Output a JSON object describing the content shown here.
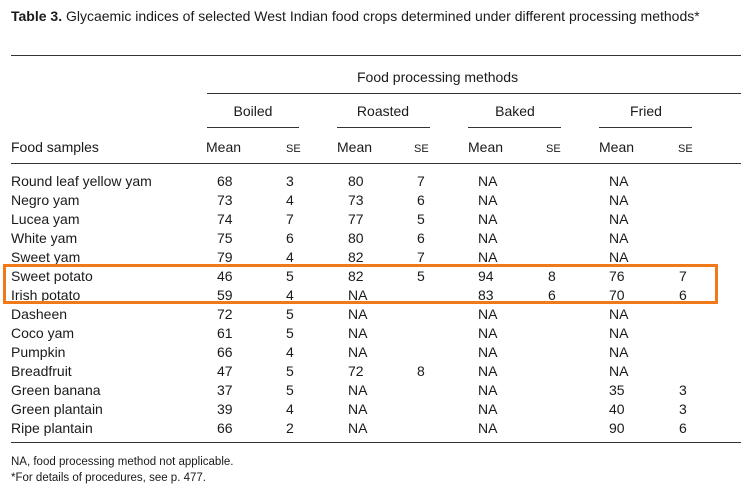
{
  "caption": {
    "label": "Table 3.",
    "text": " Glycaemic indices of selected West Indian food crops determined under different processing methods*"
  },
  "header": {
    "group_title": "Food processing methods",
    "methods": [
      "Boiled",
      "Roasted",
      "Baked",
      "Fried"
    ],
    "food_samples": "Food samples",
    "mean": "Mean",
    "se": "SE"
  },
  "rows": [
    {
      "name": "Round leaf yellow yam",
      "vals": [
        "68",
        "3",
        "80",
        "7",
        "NA",
        "",
        "NA",
        ""
      ]
    },
    {
      "name": "Negro yam",
      "vals": [
        "73",
        "4",
        "73",
        "6",
        "NA",
        "",
        "NA",
        ""
      ]
    },
    {
      "name": "Lucea yam",
      "vals": [
        "74",
        "7",
        "77",
        "5",
        "NA",
        "",
        "NA",
        ""
      ]
    },
    {
      "name": "White yam",
      "vals": [
        "75",
        "6",
        "80",
        "6",
        "NA",
        "",
        "NA",
        ""
      ]
    },
    {
      "name": "Sweet yam",
      "vals": [
        "79",
        "4",
        "82",
        "7",
        "NA",
        "",
        "NA",
        ""
      ]
    },
    {
      "name": "Sweet potato",
      "vals": [
        "46",
        "5",
        "82",
        "5",
        "94",
        "8",
        "76",
        "7"
      ]
    },
    {
      "name": "Irish potato",
      "vals": [
        "59",
        "4",
        "NA",
        "",
        "83",
        "6",
        "70",
        "6"
      ]
    },
    {
      "name": "Dasheen",
      "vals": [
        "72",
        "5",
        "NA",
        "",
        "NA",
        "",
        "NA",
        ""
      ]
    },
    {
      "name": "Coco yam",
      "vals": [
        "61",
        "5",
        "NA",
        "",
        "NA",
        "",
        "NA",
        ""
      ]
    },
    {
      "name": "Pumpkin",
      "vals": [
        "66",
        "4",
        "NA",
        "",
        "NA",
        "",
        "NA",
        ""
      ]
    },
    {
      "name": "Breadfruit",
      "vals": [
        "47",
        "5",
        "72",
        "8",
        "NA",
        "",
        "NA",
        ""
      ]
    },
    {
      "name": "Green banana",
      "vals": [
        "37",
        "5",
        "NA",
        "",
        "NA",
        "",
        "35",
        "3"
      ]
    },
    {
      "name": "Green plantain",
      "vals": [
        "39",
        "4",
        "NA",
        "",
        "NA",
        "",
        "40",
        "3"
      ]
    },
    {
      "name": "Ripe plantain",
      "vals": [
        "66",
        "2",
        "NA",
        "",
        "NA",
        "",
        "90",
        "6"
      ]
    }
  ],
  "footnotes": {
    "na": "NA, food processing method not applicable.",
    "star": "*For details of procedures, see p. 477."
  },
  "highlight_color": "#f07a1a"
}
